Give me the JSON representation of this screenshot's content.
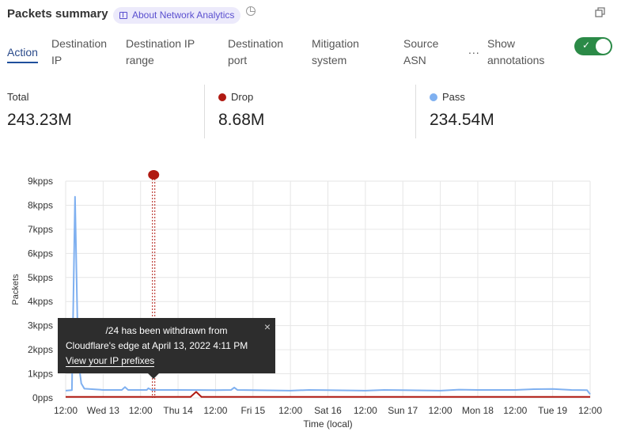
{
  "header": {
    "title": "Packets summary",
    "about_label": "About Network Analytics",
    "book_icon": "book-icon",
    "clock_icon": "clock-icon",
    "copy_icon": "copy-icon"
  },
  "tabs": [
    {
      "label": "Action",
      "active": true
    },
    {
      "label": "Destination\nIP"
    },
    {
      "label": "Destination IP\nrange"
    },
    {
      "label": "Destination\nport"
    },
    {
      "label": "Mitigation\nsystem"
    },
    {
      "label": "Source\nASN"
    }
  ],
  "more_label": "...",
  "annotations_toggle": {
    "label": "Show\nannotations",
    "on": true,
    "color": "#2b8a47"
  },
  "stats": [
    {
      "label": "Total",
      "value": "243.23M"
    },
    {
      "label": "Drop",
      "value": "8.68M",
      "color": "#b01a12"
    },
    {
      "label": "Pass",
      "value": "234.54M",
      "color": "#7fb0f0"
    }
  ],
  "tooltip": {
    "line1": "/24 has been withdrawn from",
    "line2": "Cloudflare's edge at April 13, 2022 4:11 PM",
    "link": "View your IP prefixes",
    "close": "×"
  },
  "chart_data": {
    "type": "line",
    "xlabel": "Time (local)",
    "ylabel": "Packets",
    "ylim": [
      0,
      9
    ],
    "yticks": [
      "0pps",
      "1kpps",
      "2kpps",
      "3kpps",
      "4kpps",
      "5kpps",
      "6kpps",
      "7kpps",
      "8kpps",
      "9kpps"
    ],
    "xlim": [
      "2022-04-12T12:00",
      "2022-04-19T12:00"
    ],
    "xticks": [
      "12:00",
      "Wed 13",
      "12:00",
      "Thu 14",
      "12:00",
      "Fri 15",
      "12:00",
      "Sat 16",
      "12:00",
      "Sun 17",
      "12:00",
      "Mon 18",
      "12:00",
      "Tue 19",
      "12:00"
    ],
    "grid": true,
    "annotation": {
      "time": "2022-04-13T16:11",
      "color": "#b01a12"
    },
    "series": [
      {
        "name": "Pass",
        "color": "#7fb0f0",
        "points": [
          [
            "2022-04-12T12:00",
            0.3
          ],
          [
            "2022-04-12T14:00",
            0.32
          ],
          [
            "2022-04-12T15:00",
            8.35
          ],
          [
            "2022-04-12T16:00",
            1.6
          ],
          [
            "2022-04-12T17:00",
            0.6
          ],
          [
            "2022-04-12T18:00",
            0.38
          ],
          [
            "2022-04-13T00:00",
            0.33
          ],
          [
            "2022-04-13T06:00",
            0.33
          ],
          [
            "2022-04-13T07:00",
            0.45
          ],
          [
            "2022-04-13T08:00",
            0.33
          ],
          [
            "2022-04-13T14:00",
            0.33
          ],
          [
            "2022-04-13T14:30",
            0.4
          ],
          [
            "2022-04-13T15:30",
            0.33
          ],
          [
            "2022-04-14T00:00",
            0.33
          ],
          [
            "2022-04-14T12:00",
            0.32
          ],
          [
            "2022-04-14T17:00",
            0.33
          ],
          [
            "2022-04-14T18:00",
            0.43
          ],
          [
            "2022-04-14T19:00",
            0.33
          ],
          [
            "2022-04-15T00:00",
            0.32
          ],
          [
            "2022-04-15T12:00",
            0.3
          ],
          [
            "2022-04-15T18:00",
            0.33
          ],
          [
            "2022-04-16T00:00",
            0.32
          ],
          [
            "2022-04-16T12:00",
            0.3
          ],
          [
            "2022-04-16T18:00",
            0.33
          ],
          [
            "2022-04-17T00:00",
            0.32
          ],
          [
            "2022-04-17T12:00",
            0.3
          ],
          [
            "2022-04-17T18:00",
            0.34
          ],
          [
            "2022-04-18T00:00",
            0.33
          ],
          [
            "2022-04-18T12:00",
            0.33
          ],
          [
            "2022-04-18T18:00",
            0.36
          ],
          [
            "2022-04-19T00:00",
            0.37
          ],
          [
            "2022-04-19T06:00",
            0.33
          ],
          [
            "2022-04-19T11:00",
            0.32
          ],
          [
            "2022-04-19T12:00",
            0.15
          ]
        ]
      },
      {
        "name": "Drop",
        "color": "#b01a12",
        "points": [
          [
            "2022-04-12T12:00",
            0.04
          ],
          [
            "2022-04-13T12:00",
            0.04
          ],
          [
            "2022-04-14T04:00",
            0.04
          ],
          [
            "2022-04-14T05:48",
            0.25
          ],
          [
            "2022-04-14T07:30",
            0.04
          ],
          [
            "2022-04-15T12:00",
            0.04
          ],
          [
            "2022-04-16T12:00",
            0.04
          ],
          [
            "2022-04-17T12:00",
            0.04
          ],
          [
            "2022-04-18T12:00",
            0.04
          ],
          [
            "2022-04-19T12:00",
            0.04
          ]
        ]
      }
    ]
  }
}
